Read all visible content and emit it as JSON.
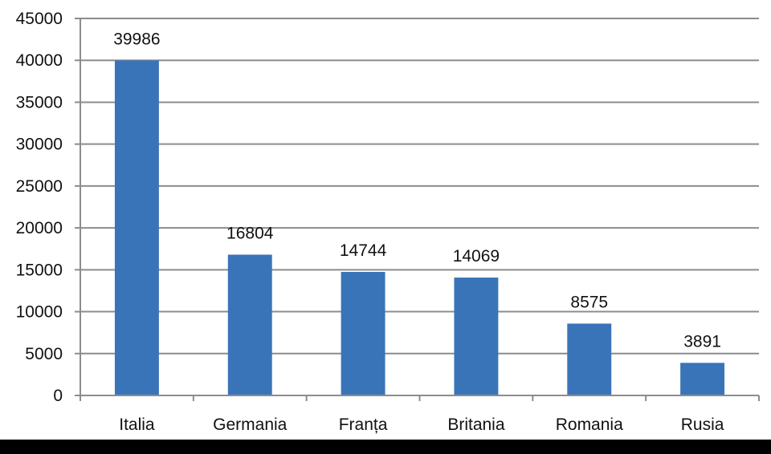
{
  "chart_data": {
    "type": "bar",
    "categories": [
      "Italia",
      "Germania",
      "Franța",
      "Britania",
      "Romania",
      "Rusia"
    ],
    "values": [
      39986,
      16804,
      14744,
      14069,
      8575,
      3891
    ],
    "data_labels": [
      "39986",
      "16804",
      "14744",
      "14069",
      "8575",
      "3891"
    ],
    "title": "",
    "xlabel": "",
    "ylabel": "",
    "ylim": [
      0,
      45000
    ],
    "yticks": [
      0,
      5000,
      10000,
      15000,
      20000,
      25000,
      30000,
      35000,
      40000,
      45000
    ],
    "ytick_labels": [
      "0",
      "5000",
      "10000",
      "15000",
      "20000",
      "25000",
      "30000",
      "35000",
      "40000",
      "45000"
    ],
    "grid": true,
    "legend": "none",
    "colors": {
      "bar": "#3a74b8",
      "grid": "#8c8c8c",
      "axis": "#8c8c8c",
      "background": "#ffffff"
    }
  }
}
